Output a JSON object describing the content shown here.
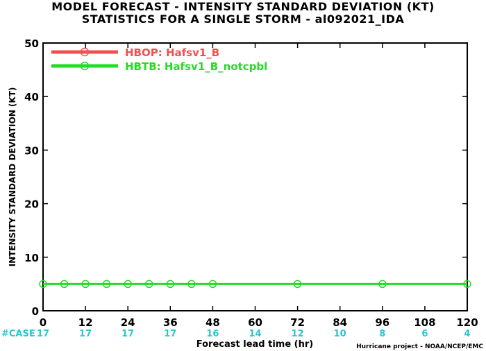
{
  "chart_data": {
    "type": "line",
    "title": "MODEL FORECAST - INTENSITY STANDARD DEVIATION (KT)",
    "subtitle": "STATISTICS FOR A SINGLE STORM - al092021_IDA",
    "xlabel": "Forecast lead time (hr)",
    "ylabel": "INTENSITY STANDARD DEVIATION (KT)",
    "xlim": [
      0,
      120
    ],
    "ylim": [
      0,
      50
    ],
    "x_ticks": [
      0,
      12,
      24,
      36,
      48,
      60,
      72,
      84,
      96,
      108,
      120
    ],
    "y_ticks": [
      0,
      10,
      20,
      30,
      40,
      50
    ],
    "case_label": "#CASE",
    "case_counts": [
      "17",
      "17",
      "17",
      "17",
      "16",
      "14",
      "12",
      "10",
      "8",
      "6",
      "4"
    ],
    "grid": false,
    "legend_position": "top-left",
    "series": [
      {
        "name": "HBOP: Hafsv1_B",
        "color": "#f05050",
        "x": [],
        "y": []
      },
      {
        "name": "HBTB: Hafsv1_B_notcpbl",
        "color": "#22dd22",
        "x": [
          0,
          6,
          12,
          18,
          24,
          30,
          36,
          42,
          48,
          72,
          96,
          120
        ],
        "y": [
          5,
          5,
          5,
          5,
          5,
          5,
          5,
          5,
          5,
          5,
          5,
          5
        ]
      }
    ],
    "credit": "Hurricane project - NOAA/NCEP/EMC"
  }
}
